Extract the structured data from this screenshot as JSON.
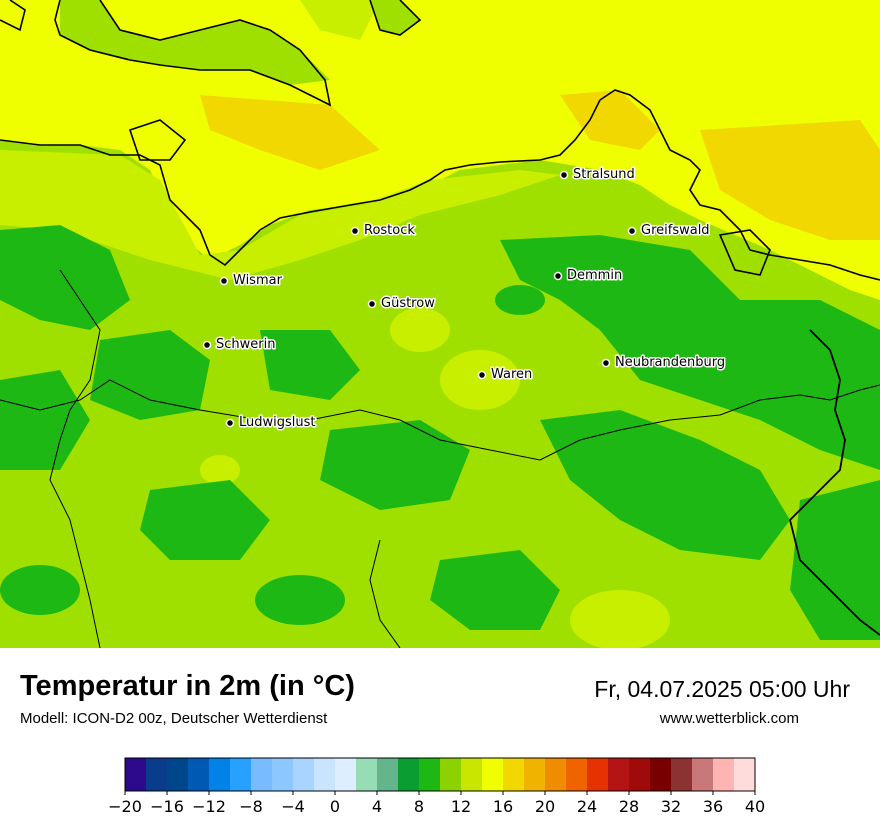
{
  "map": {
    "cities": [
      {
        "name": "Stralsund"
      },
      {
        "name": "Rostock"
      },
      {
        "name": "Greifswald"
      },
      {
        "name": "Demmin"
      },
      {
        "name": "Wismar"
      },
      {
        "name": "Güstrow"
      },
      {
        "name": "Schwerin"
      },
      {
        "name": "Neubrandenburg"
      },
      {
        "name": "Waren"
      },
      {
        "name": "Ludwigslust"
      }
    ],
    "colors": {
      "sea_warm": "#f0ff00",
      "sea_warmer": "#f0d800",
      "land_light": "#a0e000",
      "land_mid": "#c8ee00",
      "land_dark": "#1eb814",
      "coast": "#000000"
    }
  },
  "header": {
    "title": "Temperatur in 2m (in °C)",
    "model": "Modell: ICON-D2 00z, Deutscher Wetterdienst",
    "datetime": "Fr, 04.07.2025 05:00 Uhr",
    "website": "www.wetterblick.com"
  },
  "legend": {
    "ticks": [
      "−20",
      "−16",
      "−12",
      "−8",
      "−4",
      "0",
      "4",
      "8",
      "12",
      "16",
      "20",
      "24",
      "28",
      "32",
      "36",
      "40"
    ],
    "colors": [
      "#2d0a8c",
      "#0a3c8c",
      "#00468c",
      "#005ab4",
      "#0082e6",
      "#28a0ff",
      "#78bcff",
      "#8cc8ff",
      "#a8d4ff",
      "#c8e4ff",
      "#dceeff",
      "#96dcb4",
      "#64b48c",
      "#0a9e32",
      "#1eb814",
      "#8cd200",
      "#c8e600",
      "#f0ff00",
      "#f0d800",
      "#f0b400",
      "#f08c00",
      "#f06400",
      "#e63200",
      "#b41414",
      "#a00a0a",
      "#780000",
      "#8c3232",
      "#c87878",
      "#ffb4b4",
      "#ffdcdc"
    ]
  }
}
